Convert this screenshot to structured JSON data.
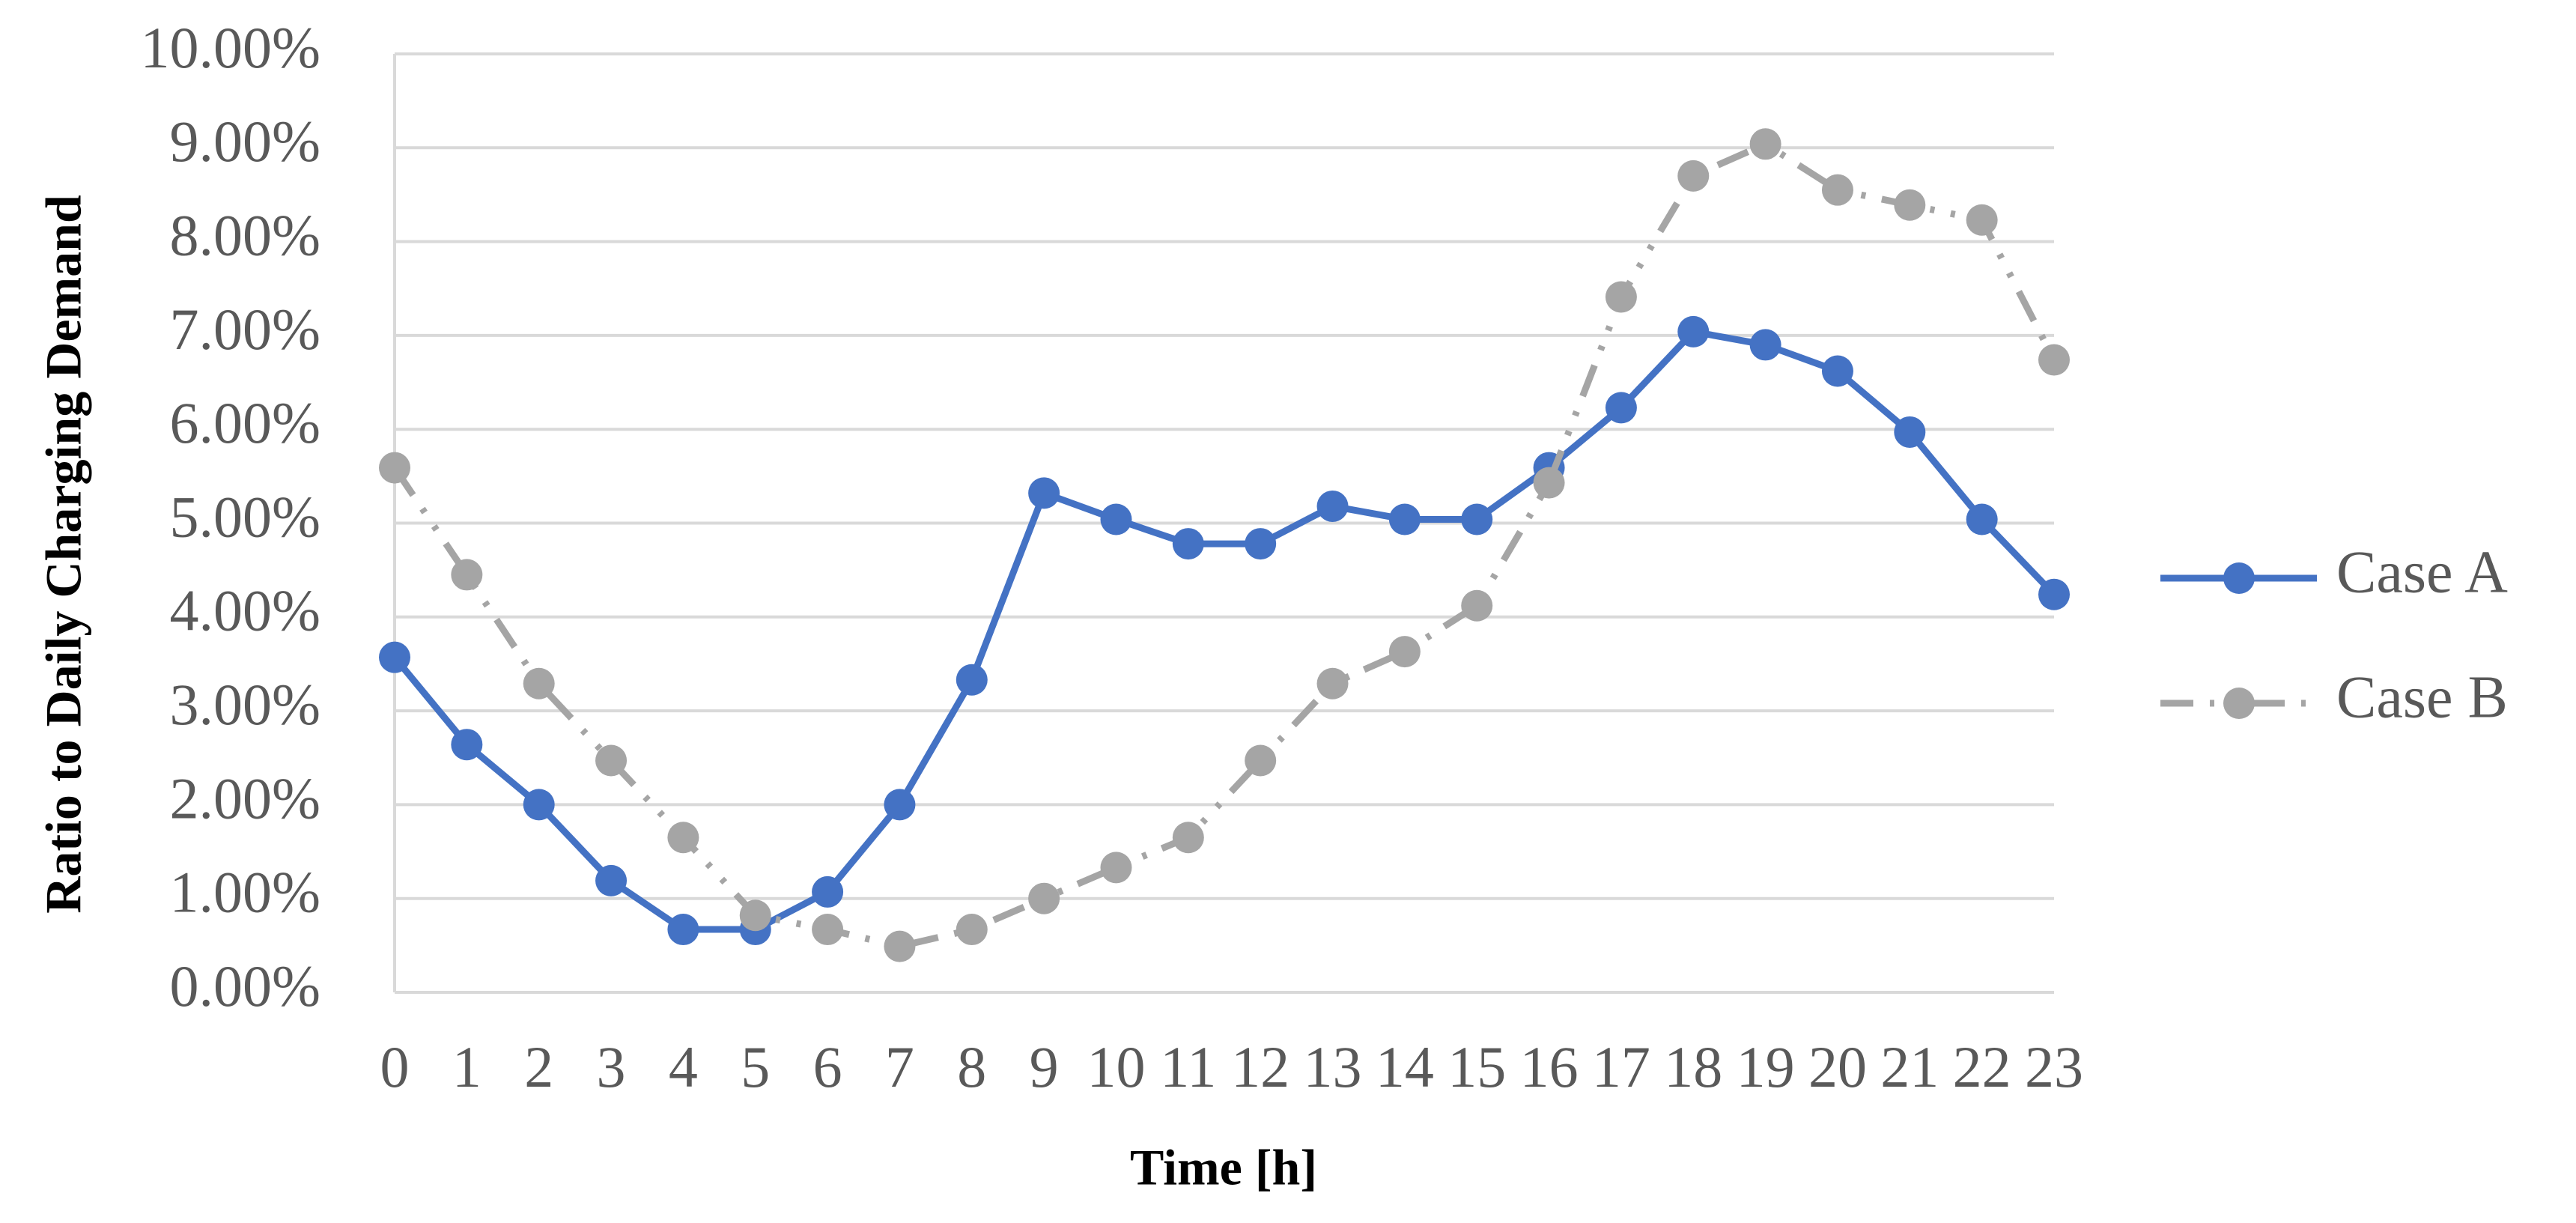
{
  "chart_data": {
    "type": "line",
    "y_label": "Ratio to Daily Charging Demand",
    "x_label": "Time [h]",
    "x": [
      0,
      1,
      2,
      3,
      4,
      5,
      6,
      7,
      8,
      9,
      10,
      11,
      12,
      13,
      14,
      15,
      16,
      17,
      18,
      19,
      20,
      21,
      22,
      23
    ],
    "xlim": [
      0,
      23
    ],
    "ylim": [
      0,
      10
    ],
    "yticks": [
      {
        "value": 0,
        "label": "0.00%"
      },
      {
        "value": 1,
        "label": "1.00%"
      },
      {
        "value": 2,
        "label": "2.00%"
      },
      {
        "value": 3,
        "label": "3.00%"
      },
      {
        "value": 4,
        "label": "4.00%"
      },
      {
        "value": 5,
        "label": "5.00%"
      },
      {
        "value": 6,
        "label": "6.00%"
      },
      {
        "value": 7,
        "label": "7.00%"
      },
      {
        "value": 8,
        "label": "8.00%"
      },
      {
        "value": 9,
        "label": "9.00%"
      },
      {
        "value": 10,
        "label": "10.00%"
      }
    ],
    "grid": true,
    "legend": "right",
    "series": [
      {
        "name": "Case A",
        "color": "#4472c4",
        "dash": "solid",
        "values": [
          3.57,
          2.64,
          2.0,
          1.19,
          0.67,
          0.67,
          1.07,
          2.0,
          3.33,
          5.32,
          5.04,
          4.78,
          4.78,
          5.18,
          5.04,
          5.04,
          5.59,
          6.23,
          7.04,
          6.9,
          6.62,
          5.97,
          5.04,
          4.24
        ]
      },
      {
        "name": "Case B",
        "color": "#a5a5a5",
        "dash": "longdashdotdot",
        "values": [
          5.59,
          4.45,
          3.29,
          2.47,
          1.65,
          0.82,
          0.67,
          0.49,
          0.67,
          1.0,
          1.33,
          1.65,
          2.47,
          3.29,
          3.63,
          4.12,
          5.43,
          7.41,
          8.7,
          9.04,
          8.55,
          8.39,
          8.23,
          6.74
        ]
      }
    ]
  }
}
